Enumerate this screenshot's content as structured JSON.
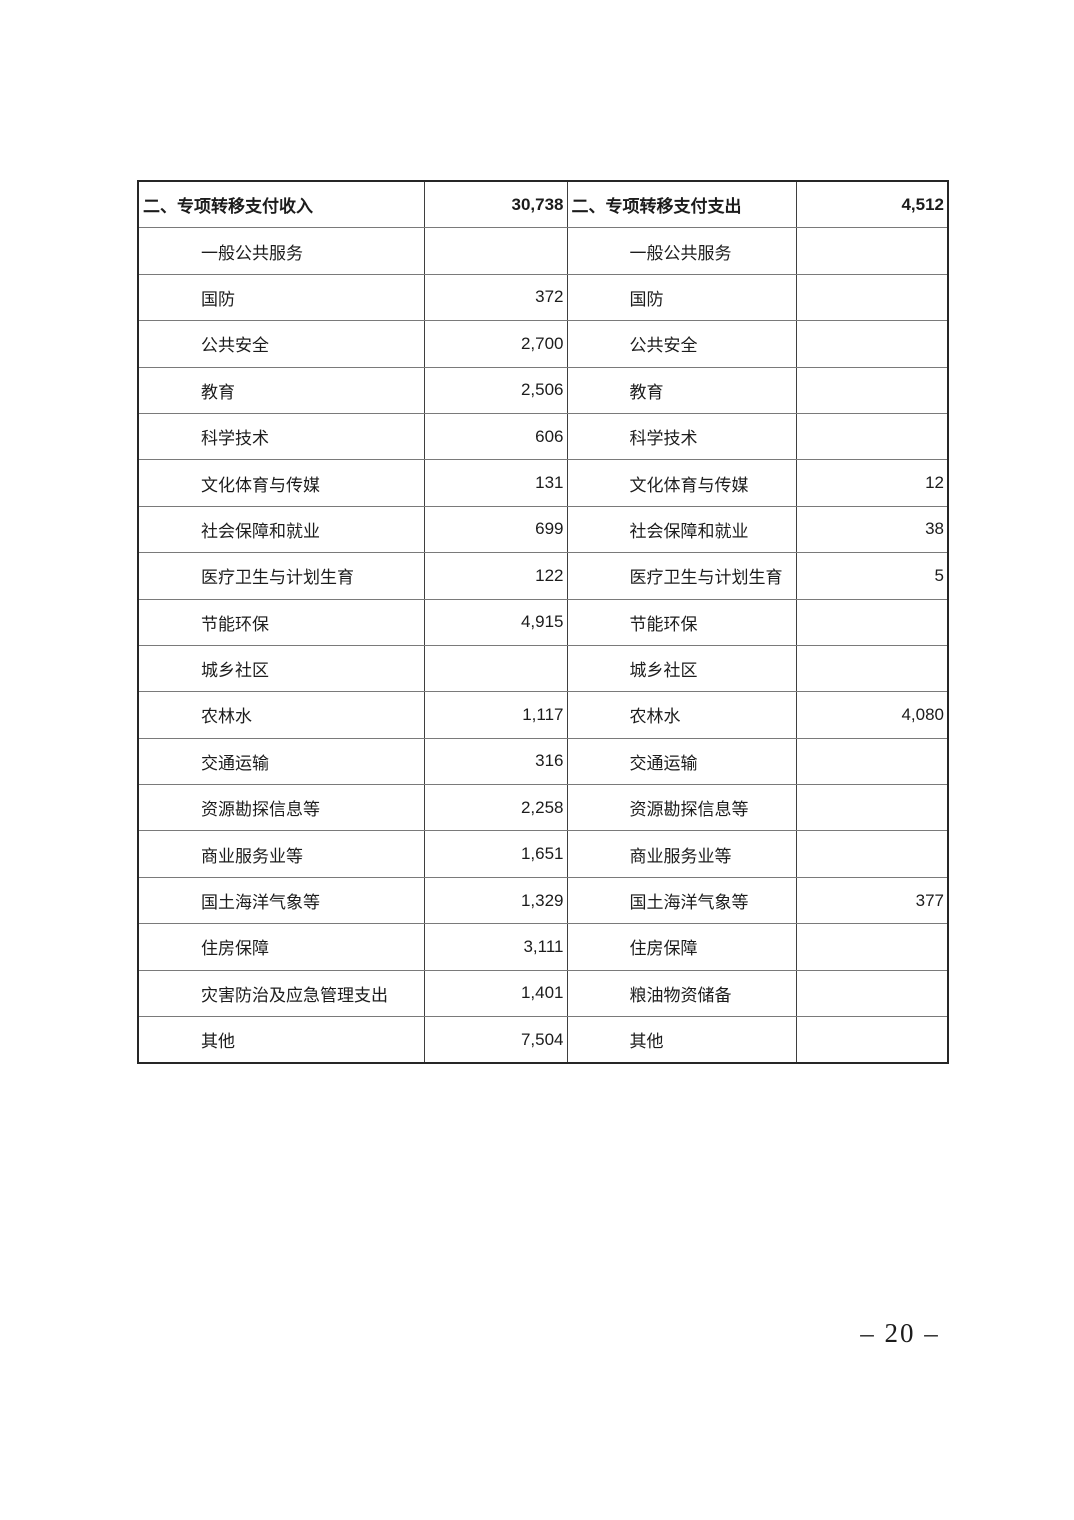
{
  "page": {
    "number_label": "– 20 –"
  },
  "colors": {
    "background": "#ffffff",
    "text": "#1c1c1c",
    "border_outer": "#262626",
    "border_vertical": "#3f3f3f",
    "border_horizontal": "#7a7a7a"
  },
  "table": {
    "header": {
      "left_label": "二、专项转移支付收入",
      "left_value": "30,738",
      "right_label": "二、专项转移支付支出",
      "right_value": "4,512"
    },
    "rows": [
      {
        "left_label": "一般公共服务",
        "left_value": "",
        "right_label": "一般公共服务",
        "right_value": ""
      },
      {
        "left_label": "国防",
        "left_value": "372",
        "right_label": "国防",
        "right_value": ""
      },
      {
        "left_label": "公共安全",
        "left_value": "2,700",
        "right_label": "公共安全",
        "right_value": ""
      },
      {
        "left_label": "教育",
        "left_value": "2,506",
        "right_label": "教育",
        "right_value": ""
      },
      {
        "left_label": "科学技术",
        "left_value": "606",
        "right_label": "科学技术",
        "right_value": ""
      },
      {
        "left_label": "文化体育与传媒",
        "left_value": "131",
        "right_label": "文化体育与传媒",
        "right_value": "12"
      },
      {
        "left_label": "社会保障和就业",
        "left_value": "699",
        "right_label": "社会保障和就业",
        "right_value": "38"
      },
      {
        "left_label": "医疗卫生与计划生育",
        "left_value": "122",
        "right_label": "医疗卫生与计划生育",
        "right_value": "5"
      },
      {
        "left_label": "节能环保",
        "left_value": "4,915",
        "right_label": "节能环保",
        "right_value": ""
      },
      {
        "left_label": "城乡社区",
        "left_value": "",
        "right_label": "城乡社区",
        "right_value": ""
      },
      {
        "left_label": "农林水",
        "left_value": "1,117",
        "right_label": "农林水",
        "right_value": "4,080"
      },
      {
        "left_label": "交通运输",
        "left_value": "316",
        "right_label": "交通运输",
        "right_value": ""
      },
      {
        "left_label": "资源勘探信息等",
        "left_value": "2,258",
        "right_label": "资源勘探信息等",
        "right_value": ""
      },
      {
        "left_label": "商业服务业等",
        "left_value": "1,651",
        "right_label": "商业服务业等",
        "right_value": ""
      },
      {
        "left_label": "国土海洋气象等",
        "left_value": "1,329",
        "right_label": "国土海洋气象等",
        "right_value": "377"
      },
      {
        "left_label": "住房保障",
        "left_value": "3,111",
        "right_label": "住房保障",
        "right_value": ""
      },
      {
        "left_label": "灾害防治及应急管理支出",
        "left_value": "1,401",
        "right_label": "粮油物资储备",
        "right_value": ""
      },
      {
        "left_label": "其他",
        "left_value": "7,504",
        "right_label": "其他",
        "right_value": ""
      }
    ]
  }
}
